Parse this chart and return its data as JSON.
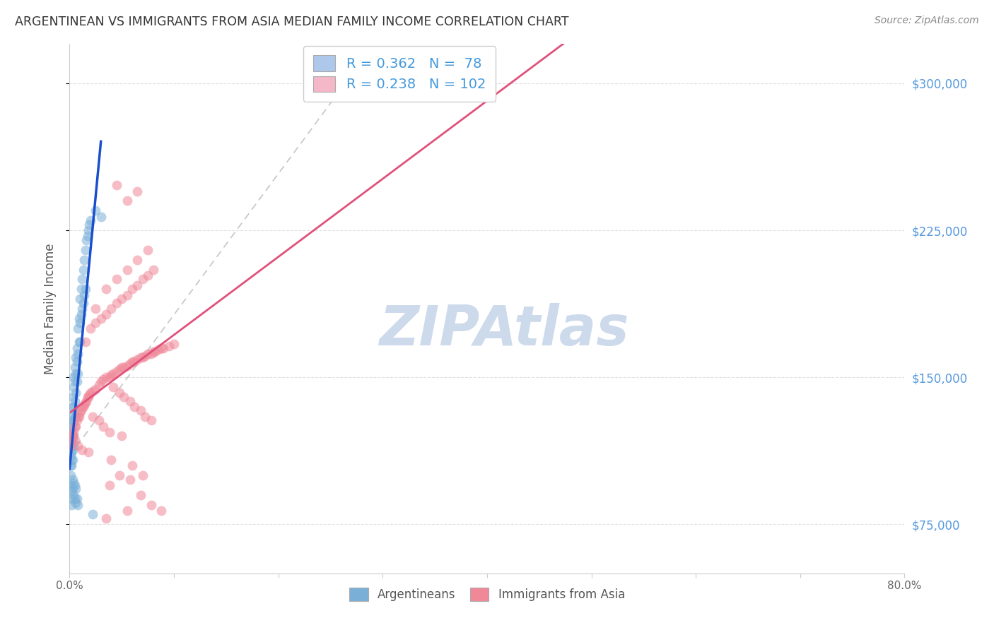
{
  "title": "ARGENTINEAN VS IMMIGRANTS FROM ASIA MEDIAN FAMILY INCOME CORRELATION CHART",
  "source": "Source: ZipAtlas.com",
  "ylabel": "Median Family Income",
  "xlim": [
    0,
    0.8
  ],
  "ylim": [
    50000,
    320000
  ],
  "xtick_positions": [
    0.0,
    0.1,
    0.2,
    0.3,
    0.4,
    0.5,
    0.6,
    0.7,
    0.8
  ],
  "xticklabels": [
    "0.0%",
    "",
    "",
    "",
    "",
    "",
    "",
    "",
    "80.0%"
  ],
  "ytick_positions": [
    75000,
    150000,
    225000,
    300000
  ],
  "ytick_labels": [
    "$75,000",
    "$150,000",
    "$225,000",
    "$300,000"
  ],
  "legend_entries": [
    {
      "label_r": "R = 0.362",
      "label_n": "N =  78",
      "color": "#adc8ea"
    },
    {
      "label_r": "R = 0.238",
      "label_n": "N = 102",
      "color": "#f5b8c8"
    }
  ],
  "bottom_legend": [
    "Argentineans",
    "Immigrants from Asia"
  ],
  "argentineans_color": "#7ab0d8",
  "asia_color": "#f08898",
  "blue_line_color": "#1a4fcc",
  "pink_line_color": "#e0507a",
  "dashed_line_color": "#bbbbbb",
  "watermark_color": "#ccdaec",
  "background_color": "#ffffff",
  "grid_color": "#dddddd",
  "title_color": "#333333",
  "axis_label_color": "#555555",
  "ytick_label_color": "#5599dd",
  "source_color": "#888888",
  "argentineans_x": [
    0.001,
    0.001,
    0.001,
    0.001,
    0.001,
    0.002,
    0.002,
    0.002,
    0.002,
    0.002,
    0.002,
    0.002,
    0.002,
    0.003,
    0.003,
    0.003,
    0.003,
    0.003,
    0.003,
    0.003,
    0.004,
    0.004,
    0.004,
    0.004,
    0.004,
    0.004,
    0.005,
    0.005,
    0.005,
    0.005,
    0.006,
    0.006,
    0.006,
    0.006,
    0.007,
    0.007,
    0.007,
    0.008,
    0.008,
    0.008,
    0.009,
    0.009,
    0.01,
    0.01,
    0.01,
    0.011,
    0.011,
    0.012,
    0.012,
    0.013,
    0.013,
    0.014,
    0.014,
    0.015,
    0.015,
    0.016,
    0.017,
    0.018,
    0.019,
    0.02,
    0.001,
    0.001,
    0.002,
    0.002,
    0.002,
    0.003,
    0.003,
    0.004,
    0.004,
    0.005,
    0.005,
    0.006,
    0.006,
    0.007,
    0.008,
    0.022,
    0.025,
    0.03
  ],
  "argentineans_y": [
    110000,
    120000,
    125000,
    115000,
    105000,
    130000,
    118000,
    112000,
    108000,
    105000,
    118000,
    122000,
    115000,
    135000,
    128000,
    140000,
    125000,
    118000,
    113000,
    108000,
    150000,
    145000,
    135000,
    128000,
    120000,
    115000,
    155000,
    148000,
    138000,
    130000,
    160000,
    152000,
    142000,
    132000,
    165000,
    158000,
    148000,
    175000,
    162000,
    152000,
    180000,
    168000,
    190000,
    178000,
    168000,
    195000,
    182000,
    200000,
    185000,
    205000,
    188000,
    210000,
    192000,
    215000,
    195000,
    220000,
    222000,
    225000,
    228000,
    230000,
    100000,
    95000,
    92000,
    88000,
    85000,
    98000,
    93000,
    96000,
    90000,
    95000,
    88000,
    93000,
    86000,
    88000,
    85000,
    80000,
    235000,
    232000
  ],
  "asia_x": [
    0.001,
    0.002,
    0.003,
    0.004,
    0.005,
    0.006,
    0.007,
    0.008,
    0.009,
    0.01,
    0.011,
    0.012,
    0.013,
    0.014,
    0.015,
    0.016,
    0.017,
    0.018,
    0.019,
    0.02,
    0.022,
    0.025,
    0.028,
    0.03,
    0.032,
    0.035,
    0.038,
    0.04,
    0.042,
    0.045,
    0.048,
    0.05,
    0.052,
    0.055,
    0.058,
    0.06,
    0.062,
    0.065,
    0.068,
    0.07,
    0.072,
    0.075,
    0.078,
    0.08,
    0.082,
    0.085,
    0.088,
    0.09,
    0.095,
    0.1,
    0.02,
    0.025,
    0.03,
    0.035,
    0.04,
    0.045,
    0.05,
    0.055,
    0.06,
    0.065,
    0.07,
    0.075,
    0.08,
    0.015,
    0.025,
    0.035,
    0.045,
    0.055,
    0.065,
    0.075,
    0.003,
    0.005,
    0.008,
    0.012,
    0.018,
    0.022,
    0.028,
    0.032,
    0.038,
    0.042,
    0.048,
    0.052,
    0.058,
    0.062,
    0.068,
    0.072,
    0.078,
    0.055,
    0.045,
    0.065,
    0.04,
    0.06,
    0.07,
    0.05,
    0.038,
    0.048,
    0.058,
    0.068,
    0.078,
    0.088,
    0.035,
    0.055
  ],
  "asia_y": [
    115000,
    118000,
    120000,
    122000,
    125000,
    125000,
    128000,
    130000,
    130000,
    132000,
    133000,
    135000,
    135000,
    136000,
    137000,
    138000,
    140000,
    140000,
    141000,
    142000,
    143000,
    144000,
    146000,
    148000,
    149000,
    150000,
    150000,
    151000,
    152000,
    153000,
    154000,
    155000,
    155000,
    156000,
    157000,
    158000,
    158000,
    159000,
    160000,
    160000,
    161000,
    162000,
    162000,
    163000,
    163000,
    164000,
    165000,
    165000,
    166000,
    167000,
    175000,
    178000,
    180000,
    182000,
    185000,
    188000,
    190000,
    192000,
    195000,
    197000,
    200000,
    202000,
    205000,
    168000,
    185000,
    195000,
    200000,
    205000,
    210000,
    215000,
    120000,
    118000,
    115000,
    113000,
    112000,
    130000,
    128000,
    125000,
    122000,
    145000,
    142000,
    140000,
    138000,
    135000,
    133000,
    130000,
    128000,
    240000,
    248000,
    245000,
    108000,
    105000,
    100000,
    120000,
    95000,
    100000,
    98000,
    90000,
    85000,
    82000,
    78000,
    82000
  ]
}
